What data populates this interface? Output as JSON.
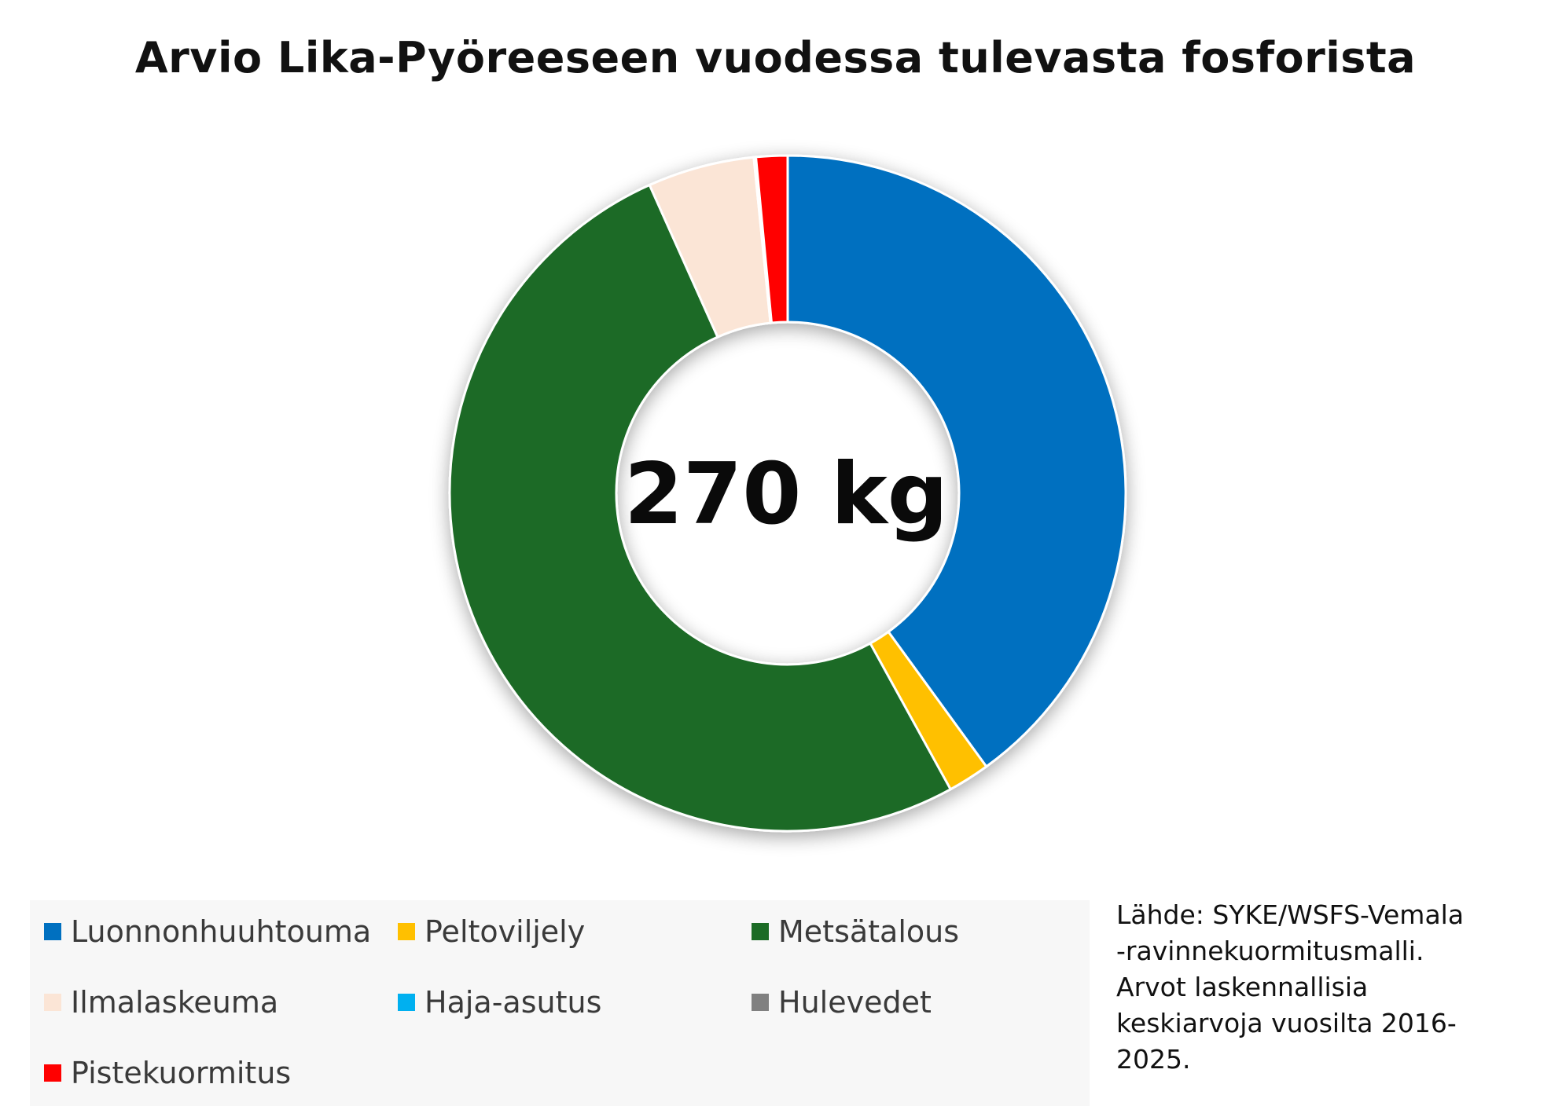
{
  "chart_data": {
    "type": "pie",
    "title": "Arvio Lika-Pyöreeseen vuodessa tulevasta fosforista",
    "center_label": "270 kg",
    "legend_position": "bottom",
    "series": [
      {
        "name": "Luonnonhuuhtouma",
        "value": 40.0,
        "color": "#0070C0"
      },
      {
        "name": "Peltoviljely",
        "value": 2.0,
        "color": "#FFC000"
      },
      {
        "name": "Metsätalous",
        "value": 51.3,
        "color": "#1B6B25"
      },
      {
        "name": "Ilmalaskeuma",
        "value": 5.1,
        "color": "#FBE5D6"
      },
      {
        "name": "Haja-asutus",
        "value": 0.0,
        "color": "#00B0F0"
      },
      {
        "name": "Hulevedet",
        "value": 0.1,
        "color": "#808080"
      },
      {
        "name": "Pistekuormitus",
        "value": 1.5,
        "color": "#FF0000"
      }
    ]
  },
  "source_lines": [
    "Lähde: SYKE/WSFS-Vemala",
    "-ravinnekuormitusmalli.",
    "Arvot laskennallisia",
    "keskiarvoja vuosilta 2016-",
    "2025."
  ]
}
